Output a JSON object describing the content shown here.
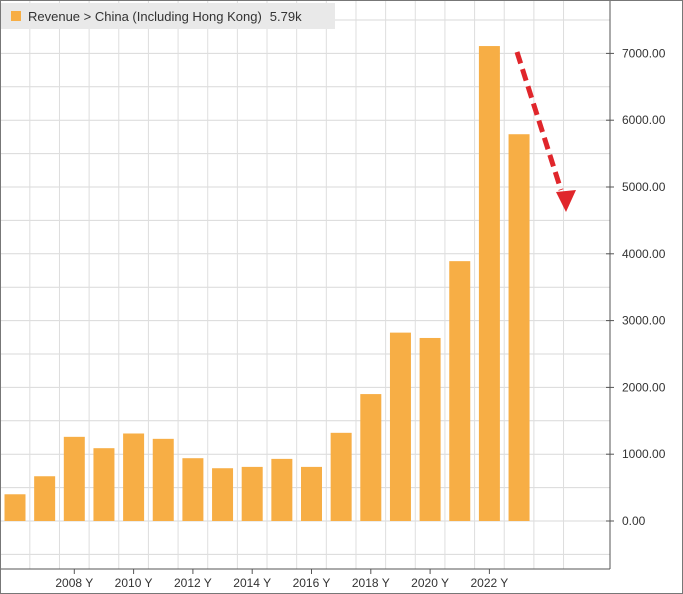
{
  "chart_data": {
    "type": "bar",
    "series": [
      {
        "name": "Revenue > China (Including Hong Kong)",
        "color": "#F7AE45",
        "x": [
          2006,
          2007,
          2008,
          2009,
          2010,
          2011,
          2012,
          2013,
          2014,
          2015,
          2016,
          2017,
          2018,
          2019,
          2020,
          2021,
          2022,
          2023
        ],
        "values": [
          400,
          670,
          1260,
          1090,
          1310,
          1230,
          940,
          790,
          810,
          930,
          810,
          1320,
          1900,
          2820,
          2740,
          3890,
          7110,
          5790
        ]
      }
    ],
    "legend": {
      "label": "Revenue > China (Including Hong Kong)",
      "value": "5.79k",
      "position": "top-left"
    },
    "x_tick_labels": [
      "2008 Y",
      "2010 Y",
      "2012 Y",
      "2014 Y",
      "2016 Y",
      "2018 Y",
      "2020 Y",
      "2022 Y"
    ],
    "x_tick_values": [
      2008,
      2010,
      2012,
      2014,
      2016,
      2018,
      2020,
      2022
    ],
    "y_tick_labels": [
      "0.00",
      "1000.00",
      "2000.00",
      "3000.00",
      "4000.00",
      "5000.00",
      "6000.00",
      "7000.00"
    ],
    "y_tick_values": [
      0,
      1000,
      2000,
      3000,
      4000,
      5000,
      6000,
      7000
    ],
    "ylim": [
      -800,
      7800
    ],
    "xlim": [
      2005.5,
      2025.5
    ],
    "grid": true,
    "y_axis_side": "right",
    "annotation": {
      "type": "dashed-arrow",
      "color": "#E0262B",
      "direction": "down"
    },
    "title": "",
    "xlabel": "",
    "ylabel": ""
  }
}
